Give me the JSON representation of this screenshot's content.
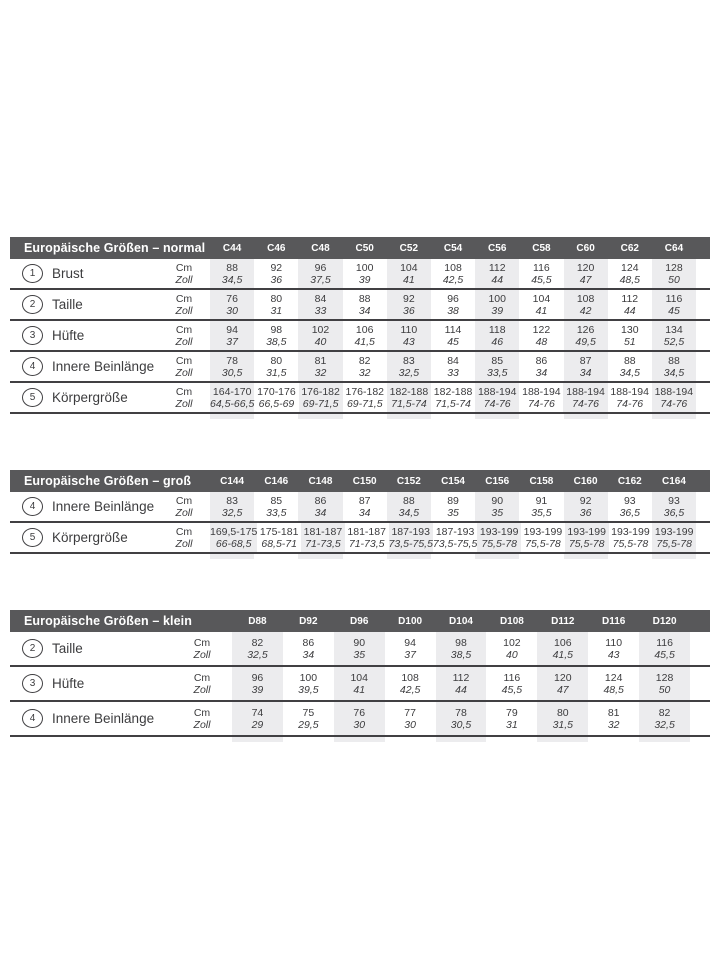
{
  "colors": {
    "header_bar": "#58585a",
    "header_text": "#ffffff",
    "body_text": "#3c3c3e",
    "shaded_column": "#ececee",
    "rule": "#414043",
    "background": "#ffffff"
  },
  "unit_labels": {
    "cm": "Cm",
    "zoll": "Zoll"
  },
  "tables": [
    {
      "id": "normal",
      "title": "Europäische Größen – normal",
      "columns": [
        "C44",
        "C46",
        "C48",
        "C50",
        "C52",
        "C54",
        "C56",
        "C58",
        "C60",
        "C62",
        "C64"
      ],
      "rows": [
        {
          "num": "1",
          "label": "Brust",
          "cm": [
            "88",
            "92",
            "96",
            "100",
            "104",
            "108",
            "112",
            "116",
            "120",
            "124",
            "128"
          ],
          "zoll": [
            "34,5",
            "36",
            "37,5",
            "39",
            "41",
            "42,5",
            "44",
            "45,5",
            "47",
            "48,5",
            "50"
          ]
        },
        {
          "num": "2",
          "label": "Taille",
          "cm": [
            "76",
            "80",
            "84",
            "88",
            "92",
            "96",
            "100",
            "104",
            "108",
            "112",
            "116"
          ],
          "zoll": [
            "30",
            "31",
            "33",
            "34",
            "36",
            "38",
            "39",
            "41",
            "42",
            "44",
            "45"
          ]
        },
        {
          "num": "3",
          "label": "Hüfte",
          "cm": [
            "94",
            "98",
            "102",
            "106",
            "110",
            "114",
            "118",
            "122",
            "126",
            "130",
            "134"
          ],
          "zoll": [
            "37",
            "38,5",
            "40",
            "41,5",
            "43",
            "45",
            "46",
            "48",
            "49,5",
            "51",
            "52,5"
          ]
        },
        {
          "num": "4",
          "label": "Innere Beinlänge",
          "cm": [
            "78",
            "80",
            "81",
            "82",
            "83",
            "84",
            "85",
            "86",
            "87",
            "88",
            "88"
          ],
          "zoll": [
            "30,5",
            "31,5",
            "32",
            "32",
            "32,5",
            "33",
            "33,5",
            "34",
            "34",
            "34,5",
            "34,5"
          ]
        },
        {
          "num": "5",
          "label": "Körpergröße",
          "cm": [
            "164-170",
            "170-176",
            "176-182",
            "176-182",
            "182-188",
            "182-188",
            "188-194",
            "188-194",
            "188-194",
            "188-194",
            "188-194"
          ],
          "zoll": [
            "64,5-66,5",
            "66,5-69",
            "69-71,5",
            "69-71,5",
            "71,5-74",
            "71,5-74",
            "74-76",
            "74-76",
            "74-76",
            "74-76",
            "74-76"
          ]
        }
      ]
    },
    {
      "id": "gross",
      "title": "Europäische Größen – groß",
      "columns": [
        "C144",
        "C146",
        "C148",
        "C150",
        "C152",
        "C154",
        "C156",
        "C158",
        "C160",
        "C162",
        "C164"
      ],
      "rows": [
        {
          "num": "4",
          "label": "Innere Beinlänge",
          "cm": [
            "83",
            "85",
            "86",
            "87",
            "88",
            "89",
            "90",
            "91",
            "92",
            "93",
            "93"
          ],
          "zoll": [
            "32,5",
            "33,5",
            "34",
            "34",
            "34,5",
            "35",
            "35",
            "35,5",
            "36",
            "36,5",
            "36,5"
          ]
        },
        {
          "num": "5",
          "label": "Körpergröße",
          "cm": [
            "169,5-175",
            "175-181",
            "181-187",
            "181-187",
            "187-193",
            "187-193",
            "193-199",
            "193-199",
            "193-199",
            "193-199",
            "193-199"
          ],
          "zoll": [
            "66-68,5",
            "68,5-71",
            "71-73,5",
            "71-73,5",
            "73,5-75,5",
            "73,5-75,5",
            "75,5-78",
            "75,5-78",
            "75,5-78",
            "75,5-78",
            "75,5-78"
          ]
        }
      ]
    },
    {
      "id": "klein",
      "title": "Europäische Größen – klein",
      "columns": [
        "D88",
        "D92",
        "D96",
        "D100",
        "D104",
        "D108",
        "D112",
        "D116",
        "D120"
      ],
      "rows": [
        {
          "num": "2",
          "label": "Taille",
          "cm": [
            "82",
            "86",
            "90",
            "94",
            "98",
            "102",
            "106",
            "110",
            "116"
          ],
          "zoll": [
            "32,5",
            "34",
            "35",
            "37",
            "38,5",
            "40",
            "41,5",
            "43",
            "45,5"
          ]
        },
        {
          "num": "3",
          "label": "Hüfte",
          "cm": [
            "96",
            "100",
            "104",
            "108",
            "112",
            "116",
            "120",
            "124",
            "128"
          ],
          "zoll": [
            "39",
            "39,5",
            "41",
            "42,5",
            "44",
            "45,5",
            "47",
            "48,5",
            "50"
          ]
        },
        {
          "num": "4",
          "label": "Innere Beinlänge",
          "cm": [
            "74",
            "75",
            "76",
            "77",
            "78",
            "79",
            "80",
            "81",
            "82"
          ],
          "zoll": [
            "29",
            "29,5",
            "30",
            "30",
            "30,5",
            "31",
            "31,5",
            "32",
            "32,5"
          ]
        }
      ]
    }
  ]
}
